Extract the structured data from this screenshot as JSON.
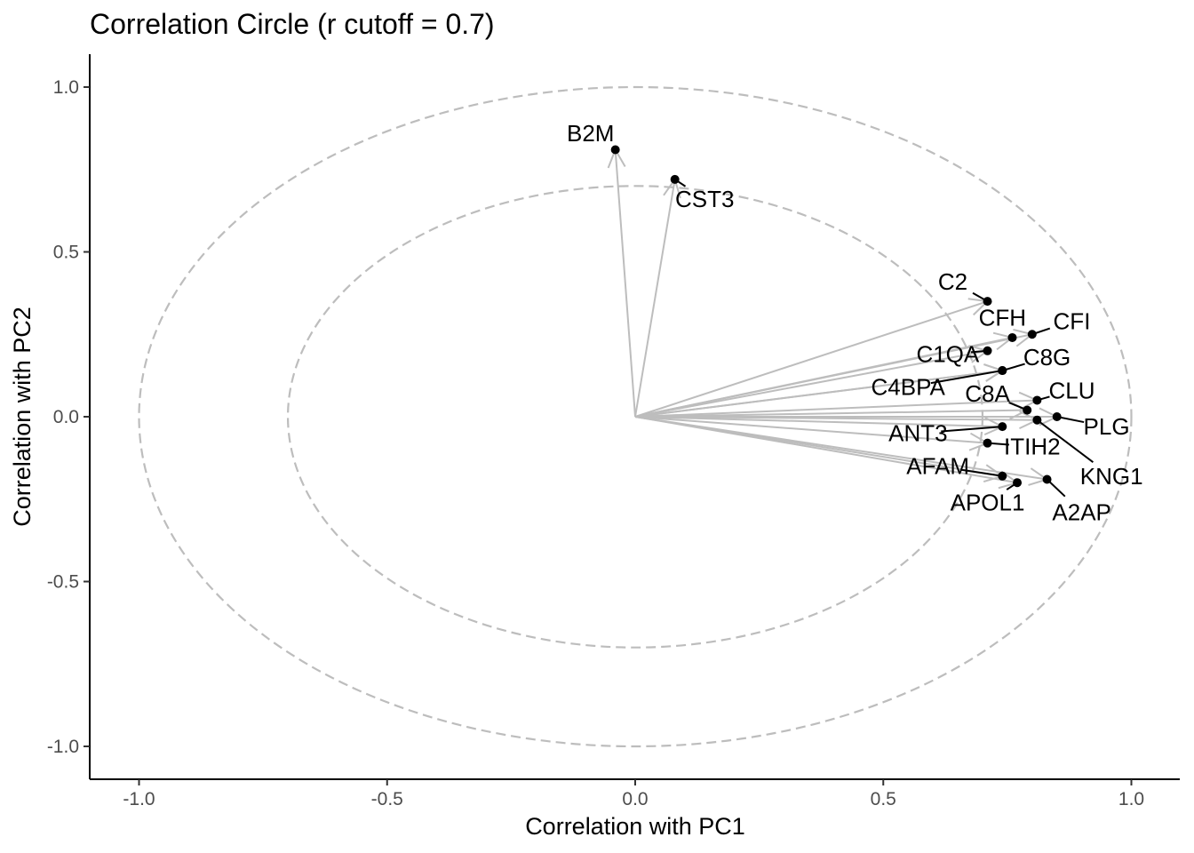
{
  "chart_data": {
    "type": "scatter",
    "title": "Correlation Circle (r cutoff = 0.7)",
    "xlabel": "Correlation with PC1",
    "ylabel": "Correlation with PC2",
    "xlim": [
      -1.1,
      1.1
    ],
    "ylim": [
      -1.1,
      1.1
    ],
    "x_ticks": [
      {
        "value": -1.0,
        "label": "-1.0"
      },
      {
        "value": -0.5,
        "label": "-0.5"
      },
      {
        "value": 0.0,
        "label": "0.0"
      },
      {
        "value": 0.5,
        "label": "0.5"
      },
      {
        "value": 1.0,
        "label": "1.0"
      }
    ],
    "y_ticks": [
      {
        "value": 1.0,
        "label": "1.0"
      },
      {
        "value": 0.5,
        "label": "0.5"
      },
      {
        "value": 0.0,
        "label": "0.0"
      },
      {
        "value": -0.5,
        "label": "-0.5"
      },
      {
        "value": -1.0,
        "label": "-1.0"
      }
    ],
    "circles": [
      1.0,
      0.7
    ],
    "grid": false,
    "arrow_color": "#bdbdbd",
    "circle_color": "#bdbdbd",
    "point_color": "#000000",
    "points": [
      {
        "label": "B2M",
        "x": -0.04,
        "y": 0.81,
        "label_x": -0.09,
        "label_y": 0.86
      },
      {
        "label": "CST3",
        "x": 0.08,
        "y": 0.72,
        "label_x": 0.14,
        "label_y": 0.66
      },
      {
        "label": "C2",
        "x": 0.71,
        "y": 0.35,
        "label_x": 0.64,
        "label_y": 0.41
      },
      {
        "label": "CFH",
        "x": 0.76,
        "y": 0.24,
        "label_x": 0.74,
        "label_y": 0.3
      },
      {
        "label": "CFI",
        "x": 0.8,
        "y": 0.25,
        "label_x": 0.88,
        "label_y": 0.29
      },
      {
        "label": "C1QA",
        "x": 0.71,
        "y": 0.2,
        "label_x": 0.63,
        "label_y": 0.19
      },
      {
        "label": "C8G",
        "x": 0.74,
        "y": 0.14,
        "label_x": 0.83,
        "label_y": 0.18
      },
      {
        "label": "C4BPA",
        "x": 0.74,
        "y": 0.14,
        "label_x": 0.55,
        "label_y": 0.09
      },
      {
        "label": "C8A",
        "x": 0.79,
        "y": 0.02,
        "label_x": 0.71,
        "label_y": 0.07
      },
      {
        "label": "CLU",
        "x": 0.81,
        "y": 0.05,
        "label_x": 0.88,
        "label_y": 0.08
      },
      {
        "label": "PLG",
        "x": 0.85,
        "y": 0.0,
        "label_x": 0.95,
        "label_y": -0.03
      },
      {
        "label": "ANT3",
        "x": 0.74,
        "y": -0.03,
        "label_x": 0.57,
        "label_y": -0.05
      },
      {
        "label": "KNG1",
        "x": 0.81,
        "y": -0.01,
        "label_x": 0.96,
        "label_y": -0.18
      },
      {
        "label": "ITIH2",
        "x": 0.71,
        "y": -0.08,
        "label_x": 0.8,
        "label_y": -0.09
      },
      {
        "label": "AFAM",
        "x": 0.74,
        "y": -0.18,
        "label_x": 0.61,
        "label_y": -0.15
      },
      {
        "label": "APOL1",
        "x": 0.77,
        "y": -0.2,
        "label_x": 0.71,
        "label_y": -0.26
      },
      {
        "label": "A2AP",
        "x": 0.83,
        "y": -0.19,
        "label_x": 0.9,
        "label_y": -0.29
      }
    ]
  }
}
